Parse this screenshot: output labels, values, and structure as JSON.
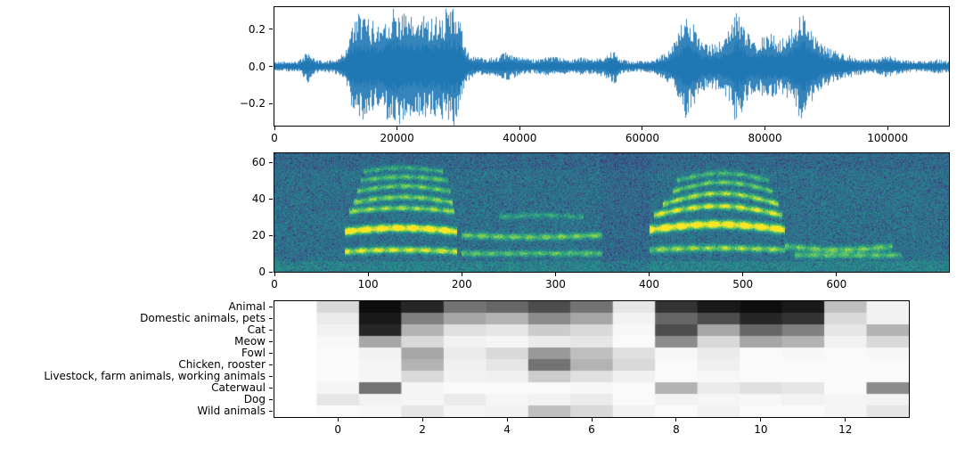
{
  "figure": {
    "background": "#ffffff",
    "title": ""
  },
  "chart_data": [
    {
      "id": "waveform",
      "type": "line",
      "title": "",
      "xlabel": "",
      "ylabel": "",
      "color": "#1f77b4",
      "xlim": [
        0,
        110000
      ],
      "ylim": [
        -0.32,
        0.32
      ],
      "xticks": [
        0,
        20000,
        40000,
        60000,
        80000,
        100000
      ],
      "xtick_labels": [
        "0",
        "20000",
        "40000",
        "60000",
        "80000",
        "100000"
      ],
      "yticks": [
        0.2,
        0.0,
        -0.2
      ],
      "ytick_labels": [
        "0.2",
        "0.0",
        "−0.2"
      ],
      "envelope": [
        [
          0,
          0.025
        ],
        [
          2000,
          0.03
        ],
        [
          4000,
          0.03
        ],
        [
          5500,
          0.09
        ],
        [
          6500,
          0.04
        ],
        [
          8000,
          0.03
        ],
        [
          10000,
          0.04
        ],
        [
          11500,
          0.08
        ],
        [
          12500,
          0.22
        ],
        [
          14000,
          0.3
        ],
        [
          15500,
          0.26
        ],
        [
          17000,
          0.24
        ],
        [
          18500,
          0.3
        ],
        [
          20000,
          0.33
        ],
        [
          21500,
          0.28
        ],
        [
          23000,
          0.26
        ],
        [
          24500,
          0.29
        ],
        [
          26000,
          0.28
        ],
        [
          27500,
          0.3
        ],
        [
          29000,
          0.34
        ],
        [
          30000,
          0.3
        ],
        [
          31000,
          0.12
        ],
        [
          32000,
          0.06
        ],
        [
          34000,
          0.05
        ],
        [
          36000,
          0.05
        ],
        [
          38000,
          0.08
        ],
        [
          40000,
          0.05
        ],
        [
          42000,
          0.04
        ],
        [
          44000,
          0.05
        ],
        [
          46000,
          0.05
        ],
        [
          48000,
          0.04
        ],
        [
          50000,
          0.05
        ],
        [
          52000,
          0.04
        ],
        [
          54000,
          0.06
        ],
        [
          55500,
          0.1
        ],
        [
          56500,
          0.04
        ],
        [
          58000,
          0.03
        ],
        [
          60000,
          0.03
        ],
        [
          62000,
          0.04
        ],
        [
          64000,
          0.08
        ],
        [
          65500,
          0.16
        ],
        [
          67000,
          0.28
        ],
        [
          68000,
          0.26
        ],
        [
          69500,
          0.14
        ],
        [
          71000,
          0.12
        ],
        [
          72500,
          0.13
        ],
        [
          74000,
          0.2
        ],
        [
          75500,
          0.33
        ],
        [
          76500,
          0.22
        ],
        [
          78000,
          0.14
        ],
        [
          79500,
          0.16
        ],
        [
          81000,
          0.18
        ],
        [
          82500,
          0.15
        ],
        [
          84000,
          0.18
        ],
        [
          85500,
          0.28
        ],
        [
          86500,
          0.31
        ],
        [
          87500,
          0.22
        ],
        [
          89000,
          0.13
        ],
        [
          90500,
          0.1
        ],
        [
          92000,
          0.08
        ],
        [
          94000,
          0.06
        ],
        [
          96000,
          0.04
        ],
        [
          98000,
          0.04
        ],
        [
          100000,
          0.06
        ],
        [
          102000,
          0.04
        ],
        [
          104000,
          0.03
        ],
        [
          106000,
          0.03
        ],
        [
          108000,
          0.04
        ],
        [
          110000,
          0.03
        ]
      ]
    },
    {
      "id": "spectrogram",
      "type": "heatmap",
      "title": "",
      "xlabel": "",
      "ylabel": "",
      "colormap": "viridis",
      "xlim": [
        0,
        720
      ],
      "ylim": [
        0,
        65
      ],
      "xticks": [
        0,
        100,
        200,
        300,
        400,
        500,
        600
      ],
      "xtick_labels": [
        "0",
        "100",
        "200",
        "300",
        "400",
        "500",
        "600"
      ],
      "yticks": [
        0,
        20,
        40,
        60
      ],
      "ytick_labels": [
        "0",
        "20",
        "40",
        "60"
      ],
      "noise_base": 0.24,
      "harmonics": [
        [
          75,
          195,
          22,
          2,
          1.0,
          1.4
        ],
        [
          75,
          195,
          11,
          1,
          0.7,
          1.2
        ],
        [
          80,
          192,
          33,
          2,
          0.55,
          1.1
        ],
        [
          85,
          190,
          38,
          3,
          0.5,
          1.1
        ],
        [
          88,
          188,
          44,
          3,
          0.45,
          1.0
        ],
        [
          92,
          185,
          50,
          2,
          0.4,
          1.0
        ],
        [
          95,
          180,
          55,
          2,
          0.3,
          1.0
        ],
        [
          200,
          350,
          20,
          -1,
          0.45,
          1.2
        ],
        [
          200,
          350,
          10,
          0,
          0.4,
          1.1
        ],
        [
          240,
          330,
          30,
          1,
          0.25,
          1.0
        ],
        [
          400,
          545,
          23,
          3,
          1.0,
          1.5
        ],
        [
          400,
          545,
          12,
          1,
          0.55,
          1.2
        ],
        [
          405,
          542,
          31,
          5,
          0.7,
          1.2
        ],
        [
          415,
          538,
          37,
          6,
          0.6,
          1.1
        ],
        [
          425,
          532,
          44,
          5,
          0.45,
          1.0
        ],
        [
          430,
          528,
          50,
          4,
          0.35,
          1.0
        ],
        [
          545,
          660,
          14,
          -2,
          0.45,
          1.2
        ],
        [
          555,
          670,
          9,
          0,
          0.4,
          1.1
        ]
      ]
    },
    {
      "id": "class-heatmap",
      "type": "heatmap",
      "title": "",
      "xlabel": "",
      "ylabel": "",
      "colormap": "greys",
      "xlim": [
        -1.5,
        13.5
      ],
      "xticks": [
        0,
        2,
        4,
        6,
        8,
        10,
        12
      ],
      "xtick_labels": [
        "0",
        "2",
        "4",
        "6",
        "8",
        "10",
        "12"
      ],
      "rows": [
        "Animal",
        "Domestic animals, pets",
        "Cat",
        "Meow",
        "Fowl",
        "Chicken, rooster",
        "Livestock, farm animals, working animals",
        "Caterwaul",
        "Dog",
        "Wild animals"
      ],
      "columns": [
        0,
        1,
        2,
        3,
        4,
        5,
        6,
        7,
        8,
        9,
        10,
        11,
        12,
        13
      ],
      "values": [
        [
          0.15,
          0.95,
          0.85,
          0.55,
          0.6,
          0.7,
          0.55,
          0.1,
          0.8,
          0.9,
          0.95,
          0.9,
          0.25,
          0.05
        ],
        [
          0.08,
          0.9,
          0.5,
          0.35,
          0.3,
          0.45,
          0.35,
          0.05,
          0.6,
          0.7,
          0.85,
          0.8,
          0.15,
          0.05
        ],
        [
          0.05,
          0.85,
          0.3,
          0.12,
          0.1,
          0.2,
          0.15,
          0.03,
          0.7,
          0.35,
          0.6,
          0.5,
          0.1,
          0.3
        ],
        [
          0.03,
          0.35,
          0.15,
          0.05,
          0.04,
          0.08,
          0.1,
          0.02,
          0.45,
          0.15,
          0.35,
          0.3,
          0.05,
          0.15
        ],
        [
          0.02,
          0.05,
          0.35,
          0.08,
          0.15,
          0.4,
          0.25,
          0.12,
          0.03,
          0.08,
          0.02,
          0.03,
          0.02,
          0.03
        ],
        [
          0.02,
          0.04,
          0.3,
          0.06,
          0.1,
          0.55,
          0.3,
          0.15,
          0.02,
          0.06,
          0.02,
          0.02,
          0.02,
          0.02
        ],
        [
          0.02,
          0.04,
          0.15,
          0.05,
          0.06,
          0.2,
          0.12,
          0.06,
          0.02,
          0.03,
          0.02,
          0.02,
          0.02,
          0.02
        ],
        [
          0.04,
          0.55,
          0.04,
          0.02,
          0.02,
          0.02,
          0.03,
          0.02,
          0.3,
          0.08,
          0.12,
          0.1,
          0.02,
          0.45
        ],
        [
          0.1,
          0.05,
          0.04,
          0.08,
          0.04,
          0.05,
          0.08,
          0.02,
          0.05,
          0.04,
          0.03,
          0.05,
          0.04,
          0.05
        ],
        [
          0.02,
          0.03,
          0.1,
          0.04,
          0.05,
          0.25,
          0.15,
          0.05,
          0.02,
          0.05,
          0.02,
          0.02,
          0.04,
          0.1
        ]
      ]
    }
  ]
}
